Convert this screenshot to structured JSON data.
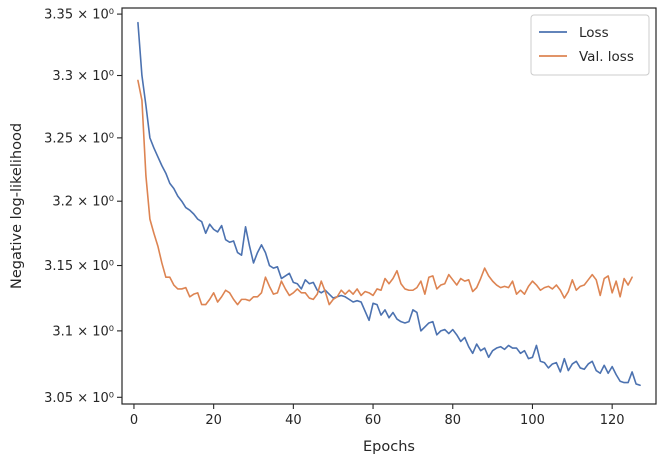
{
  "chart_data": {
    "type": "line",
    "xlabel": "Epochs",
    "ylabel": "Negative log-likelihood",
    "xlim": [
      -3,
      131
    ],
    "ylim": [
      3.045,
      3.355
    ],
    "y_scale": "log",
    "grid": false,
    "legend_position": "top-right",
    "x_ticks": [
      {
        "value": 0,
        "label": "0"
      },
      {
        "value": 20,
        "label": "20"
      },
      {
        "value": 40,
        "label": "40"
      },
      {
        "value": 60,
        "label": "60"
      },
      {
        "value": 80,
        "label": "80"
      },
      {
        "value": 100,
        "label": "100"
      },
      {
        "value": 120,
        "label": "120"
      }
    ],
    "y_ticks": [
      {
        "value": 3.05,
        "label": "3.05 × 10⁰"
      },
      {
        "value": 3.1,
        "label": "3.1 × 10⁰"
      },
      {
        "value": 3.15,
        "label": "3.15 × 10⁰"
      },
      {
        "value": 3.2,
        "label": "3.2 × 10⁰"
      },
      {
        "value": 3.25,
        "label": "3.25 × 10⁰"
      },
      {
        "value": 3.3,
        "label": "3.3 × 10⁰"
      },
      {
        "value": 3.35,
        "label": "3.35 × 10⁰"
      }
    ],
    "x_start": 1,
    "series": [
      {
        "name": "Loss",
        "color": "#4c72b0",
        "values": [
          3.343,
          3.3,
          3.276,
          3.25,
          3.242,
          3.235,
          3.228,
          3.222,
          3.214,
          3.21,
          3.204,
          3.2,
          3.195,
          3.193,
          3.19,
          3.186,
          3.184,
          3.175,
          3.182,
          3.178,
          3.176,
          3.181,
          3.17,
          3.168,
          3.169,
          3.16,
          3.158,
          3.18,
          3.165,
          3.152,
          3.16,
          3.166,
          3.16,
          3.15,
          3.148,
          3.149,
          3.14,
          3.142,
          3.144,
          3.137,
          3.136,
          3.132,
          3.139,
          3.136,
          3.137,
          3.131,
          3.129,
          3.131,
          3.128,
          3.125,
          3.126,
          3.127,
          3.126,
          3.124,
          3.122,
          3.123,
          3.122,
          3.115,
          3.108,
          3.121,
          3.12,
          3.112,
          3.116,
          3.11,
          3.114,
          3.109,
          3.107,
          3.106,
          3.107,
          3.116,
          3.114,
          3.1,
          3.103,
          3.106,
          3.107,
          3.097,
          3.1,
          3.101,
          3.098,
          3.101,
          3.097,
          3.092,
          3.095,
          3.088,
          3.083,
          3.09,
          3.085,
          3.087,
          3.08,
          3.085,
          3.087,
          3.088,
          3.086,
          3.089,
          3.087,
          3.087,
          3.083,
          3.085,
          3.079,
          3.08,
          3.089,
          3.077,
          3.076,
          3.072,
          3.075,
          3.076,
          3.069,
          3.079,
          3.07,
          3.075,
          3.077,
          3.072,
          3.071,
          3.075,
          3.077,
          3.07,
          3.068,
          3.074,
          3.068,
          3.073,
          3.067,
          3.062,
          3.061,
          3.061,
          3.069,
          3.06,
          3.059
        ]
      },
      {
        "name": "Val. loss",
        "color": "#dd8452",
        "values": [
          3.296,
          3.28,
          3.22,
          3.186,
          3.175,
          3.165,
          3.152,
          3.141,
          3.141,
          3.135,
          3.132,
          3.132,
          3.133,
          3.126,
          3.128,
          3.129,
          3.12,
          3.12,
          3.124,
          3.129,
          3.122,
          3.126,
          3.131,
          3.129,
          3.124,
          3.12,
          3.124,
          3.124,
          3.123,
          3.126,
          3.126,
          3.129,
          3.141,
          3.134,
          3.128,
          3.129,
          3.138,
          3.132,
          3.127,
          3.129,
          3.132,
          3.129,
          3.129,
          3.125,
          3.124,
          3.128,
          3.138,
          3.13,
          3.12,
          3.124,
          3.126,
          3.131,
          3.128,
          3.131,
          3.128,
          3.132,
          3.127,
          3.13,
          3.129,
          3.127,
          3.132,
          3.131,
          3.14,
          3.136,
          3.14,
          3.146,
          3.136,
          3.132,
          3.131,
          3.131,
          3.133,
          3.138,
          3.128,
          3.141,
          3.142,
          3.132,
          3.135,
          3.136,
          3.143,
          3.139,
          3.135,
          3.14,
          3.138,
          3.139,
          3.13,
          3.133,
          3.14,
          3.148,
          3.142,
          3.138,
          3.135,
          3.133,
          3.134,
          3.133,
          3.138,
          3.128,
          3.131,
          3.128,
          3.134,
          3.138,
          3.135,
          3.131,
          3.133,
          3.134,
          3.132,
          3.135,
          3.131,
          3.125,
          3.13,
          3.139,
          3.131,
          3.134,
          3.135,
          3.139,
          3.143,
          3.139,
          3.127,
          3.14,
          3.142,
          3.129,
          3.138,
          3.126,
          3.14,
          3.135,
          3.141
        ]
      }
    ]
  }
}
